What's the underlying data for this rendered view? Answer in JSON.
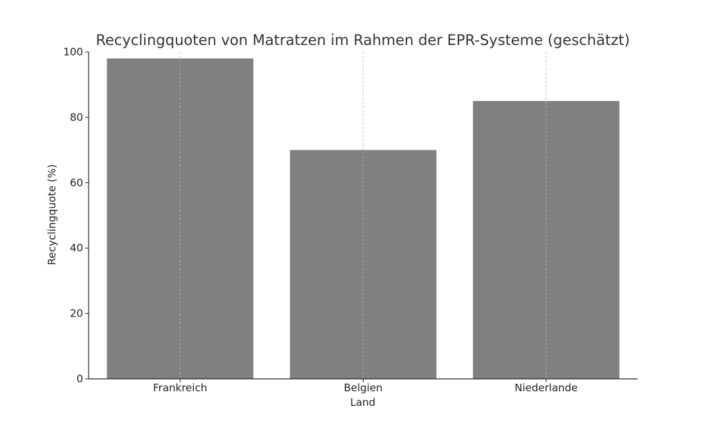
{
  "chart_data": {
    "type": "bar",
    "title": "Recyclingquoten von Matratzen im Rahmen der EPR-Systeme (geschätzt)",
    "xlabel": "Land",
    "ylabel": "Recyclingquote (%)",
    "categories": [
      "Frankreich",
      "Belgien",
      "Niederlande"
    ],
    "values": [
      98,
      70,
      85
    ],
    "ylim": [
      0,
      100
    ],
    "yticks": [
      0,
      20,
      40,
      60,
      80,
      100
    ],
    "grid": "x-dashed",
    "bar_color": "#808080"
  }
}
